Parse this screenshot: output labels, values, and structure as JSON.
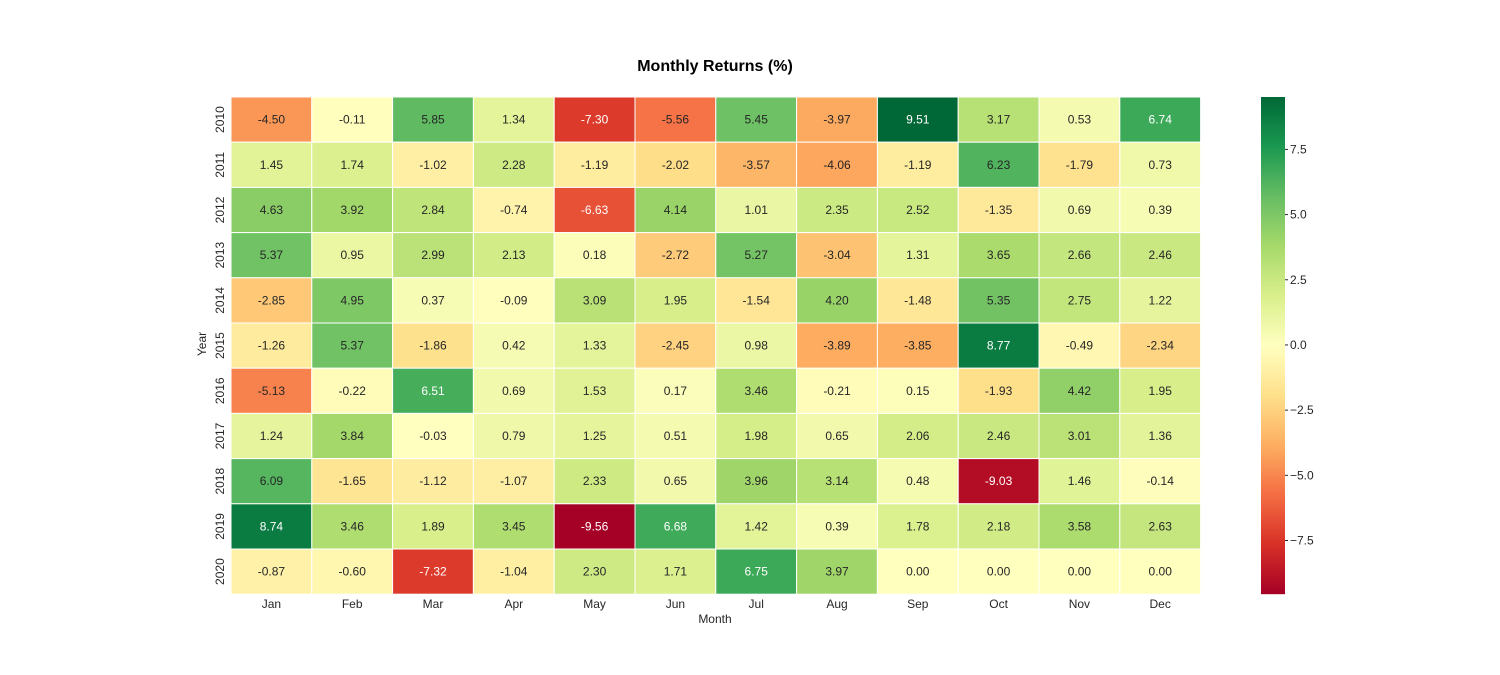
{
  "chart_data": {
    "type": "heatmap",
    "title": "Monthly Returns (%)",
    "xlabel": "Month",
    "ylabel": "Year",
    "x_categories": [
      "Jan",
      "Feb",
      "Mar",
      "Apr",
      "May",
      "Jun",
      "Jul",
      "Aug",
      "Sep",
      "Oct",
      "Nov",
      "Dec"
    ],
    "y_categories": [
      "2010",
      "2011",
      "2012",
      "2013",
      "2014",
      "2015",
      "2016",
      "2017",
      "2018",
      "2019",
      "2020"
    ],
    "values": [
      [
        -4.5,
        -0.11,
        5.85,
        1.34,
        -7.3,
        -5.56,
        5.45,
        -3.97,
        9.51,
        3.17,
        0.53,
        6.74
      ],
      [
        1.45,
        1.74,
        -1.02,
        2.28,
        -1.19,
        -2.02,
        -3.57,
        -4.06,
        -1.19,
        6.23,
        -1.79,
        0.73
      ],
      [
        4.63,
        3.92,
        2.84,
        -0.74,
        -6.63,
        4.14,
        1.01,
        2.35,
        2.52,
        -1.35,
        0.69,
        0.39
      ],
      [
        5.37,
        0.95,
        2.99,
        2.13,
        0.18,
        -2.72,
        5.27,
        -3.04,
        1.31,
        3.65,
        2.66,
        2.46
      ],
      [
        -2.85,
        4.95,
        0.37,
        -0.09,
        3.09,
        1.95,
        -1.54,
        4.2,
        -1.48,
        5.35,
        2.75,
        1.22
      ],
      [
        -1.26,
        5.37,
        -1.86,
        0.42,
        1.33,
        -2.45,
        0.98,
        -3.89,
        -3.85,
        8.77,
        -0.49,
        -2.34
      ],
      [
        -5.13,
        -0.22,
        6.51,
        0.69,
        1.53,
        0.17,
        3.46,
        -0.21,
        0.15,
        -1.93,
        4.42,
        1.95
      ],
      [
        1.24,
        3.84,
        -0.03,
        0.79,
        1.25,
        0.51,
        1.98,
        0.65,
        2.06,
        2.46,
        3.01,
        1.36
      ],
      [
        6.09,
        -1.65,
        -1.12,
        -1.07,
        2.33,
        0.65,
        3.96,
        3.14,
        0.48,
        -9.03,
        1.46,
        -0.14
      ],
      [
        8.74,
        3.46,
        1.89,
        3.45,
        -9.56,
        6.68,
        1.42,
        0.39,
        1.78,
        2.18,
        3.58,
        2.63
      ],
      [
        -0.87,
        -0.6,
        -7.32,
        -1.04,
        2.3,
        1.71,
        6.75,
        3.97,
        0.0,
        0.0,
        0.0,
        0.0
      ]
    ],
    "value_format": "2 decimals",
    "colormap": "RdYlGn",
    "color_range": [
      -9.56,
      9.51
    ],
    "colorbar_ticks": [
      7.5,
      5.0,
      2.5,
      0.0,
      -2.5,
      -5.0,
      -7.5
    ],
    "colorbar_tick_labels": [
      "7.5",
      "5.0",
      "2.5",
      "0.0",
      "−2.5",
      "−5.0",
      "−7.5"
    ],
    "colors": {
      "cell_border": "#ffffff",
      "text_dark": "#262626",
      "text_light": "#ffffff"
    }
  }
}
